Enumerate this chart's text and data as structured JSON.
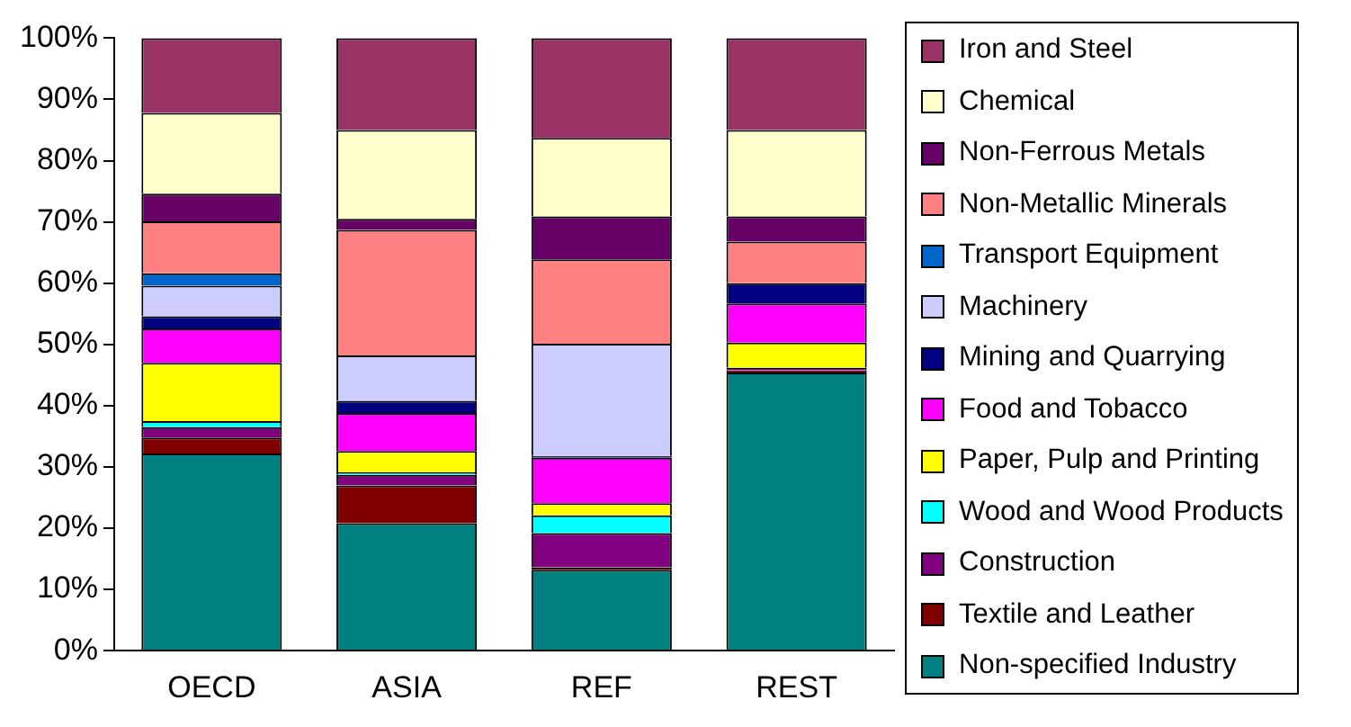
{
  "chart_data": {
    "type": "bar",
    "stacked": true,
    "categories": [
      "OECD",
      "ASIA",
      "REF",
      "REST"
    ],
    "ylim": [
      0,
      100
    ],
    "yticks": [
      {
        "value": 0,
        "label": "0%"
      },
      {
        "value": 10,
        "label": "10%"
      },
      {
        "value": 20,
        "label": "20%"
      },
      {
        "value": 30,
        "label": "30%"
      },
      {
        "value": 40,
        "label": "40%"
      },
      {
        "value": 50,
        "label": "50%"
      },
      {
        "value": 60,
        "label": "60%"
      },
      {
        "value": 70,
        "label": "70%"
      },
      {
        "value": 80,
        "label": "80%"
      },
      {
        "value": 90,
        "label": "90%"
      },
      {
        "value": 100,
        "label": "100%"
      }
    ],
    "legend": "right",
    "series": [
      {
        "name": "Non-specified Industry",
        "color": "#008080",
        "values": [
          32.2,
          20.8,
          13.2,
          45.4
        ]
      },
      {
        "name": "Textile and Leather",
        "color": "#800000",
        "values": [
          2.6,
          6.2,
          0.4,
          0.4
        ]
      },
      {
        "name": "Construction",
        "color": "#800080",
        "values": [
          1.7,
          1.7,
          5.6,
          0.4
        ]
      },
      {
        "name": "Wood and Wood Products",
        "color": "#00ffff",
        "values": [
          1.0,
          0.4,
          2.9,
          0
        ]
      },
      {
        "name": "Paper, Pulp and Printing",
        "color": "#ffff00",
        "values": [
          9.5,
          3.5,
          2.0,
          4.1
        ]
      },
      {
        "name": "Food and Tobacco",
        "color": "#ff00ff",
        "values": [
          5.6,
          6.2,
          7.4,
          6.4
        ]
      },
      {
        "name": "Mining and Quarrying",
        "color": "#000080",
        "values": [
          2.0,
          2.0,
          0.3,
          3.3
        ]
      },
      {
        "name": "Machinery",
        "color": "#ccccff",
        "values": [
          5.0,
          7.4,
          18.3,
          0
        ]
      },
      {
        "name": "Transport Equipment",
        "color": "#0066cc",
        "values": [
          2.0,
          0,
          0,
          0
        ]
      },
      {
        "name": "Non-Metallic Minerals",
        "color": "#ff8080",
        "values": [
          8.5,
          20.5,
          13.8,
          6.8
        ]
      },
      {
        "name": "Non-Ferrous Metals",
        "color": "#660066",
        "values": [
          4.5,
          1.8,
          7.0,
          4.1
        ]
      },
      {
        "name": "Chemical",
        "color": "#ffffcc",
        "values": [
          13.2,
          14.5,
          12.8,
          14.1
        ]
      },
      {
        "name": "Iron and Steel",
        "color": "#993366",
        "values": [
          12.2,
          15.0,
          16.3,
          15.0
        ]
      }
    ]
  }
}
